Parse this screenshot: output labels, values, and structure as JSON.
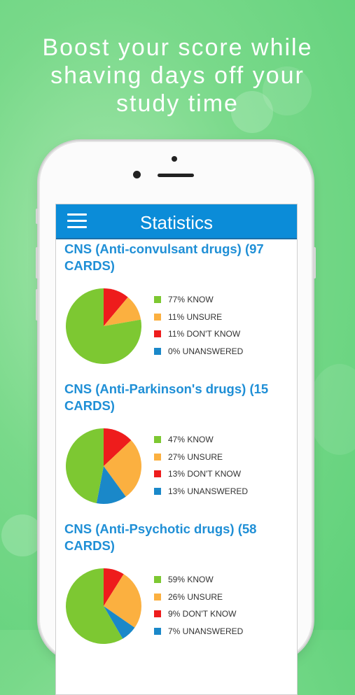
{
  "headline": {
    "line1": "Boost your score while",
    "line2": "shaving days off your",
    "line3": "study time"
  },
  "colors": {
    "know": "#7dc832",
    "unsure": "#fbb040",
    "dont_know": "#ee1c1c",
    "unanswered": "#1a88c9",
    "header": "#0b8cd8"
  },
  "app": {
    "title": "Statistics",
    "menu_icon": "hamburger-menu-icon"
  },
  "sections": [
    {
      "title": "CNS (Anti-convulsant drugs) (97 CARDS)",
      "legend": [
        "77% KNOW",
        "11% UNSURE",
        "11% DON'T KNOW",
        "0% UNANSWERED"
      ]
    },
    {
      "title": "CNS (Anti-Parkinson's drugs) (15 CARDS)",
      "legend": [
        "47% KNOW",
        "27% UNSURE",
        "13% DON'T KNOW",
        "13% UNANSWERED"
      ]
    },
    {
      "title": "CNS (Anti-Psychotic drugs)  (58 CARDS)",
      "legend": [
        "59% KNOW",
        "26% UNSURE",
        "9% DON'T KNOW",
        "7% UNANSWERED"
      ]
    }
  ],
  "chart_data": [
    {
      "type": "pie",
      "categories": [
        "KNOW",
        "UNSURE",
        "DON'T KNOW",
        "UNANSWERED"
      ],
      "values": [
        77,
        11,
        11,
        0
      ]
    },
    {
      "type": "pie",
      "categories": [
        "KNOW",
        "UNSURE",
        "DON'T KNOW",
        "UNANSWERED"
      ],
      "values": [
        47,
        27,
        13,
        13
      ]
    },
    {
      "type": "pie",
      "categories": [
        "KNOW",
        "UNSURE",
        "DON'T KNOW",
        "UNANSWERED"
      ],
      "values": [
        59,
        26,
        9,
        7
      ]
    }
  ]
}
